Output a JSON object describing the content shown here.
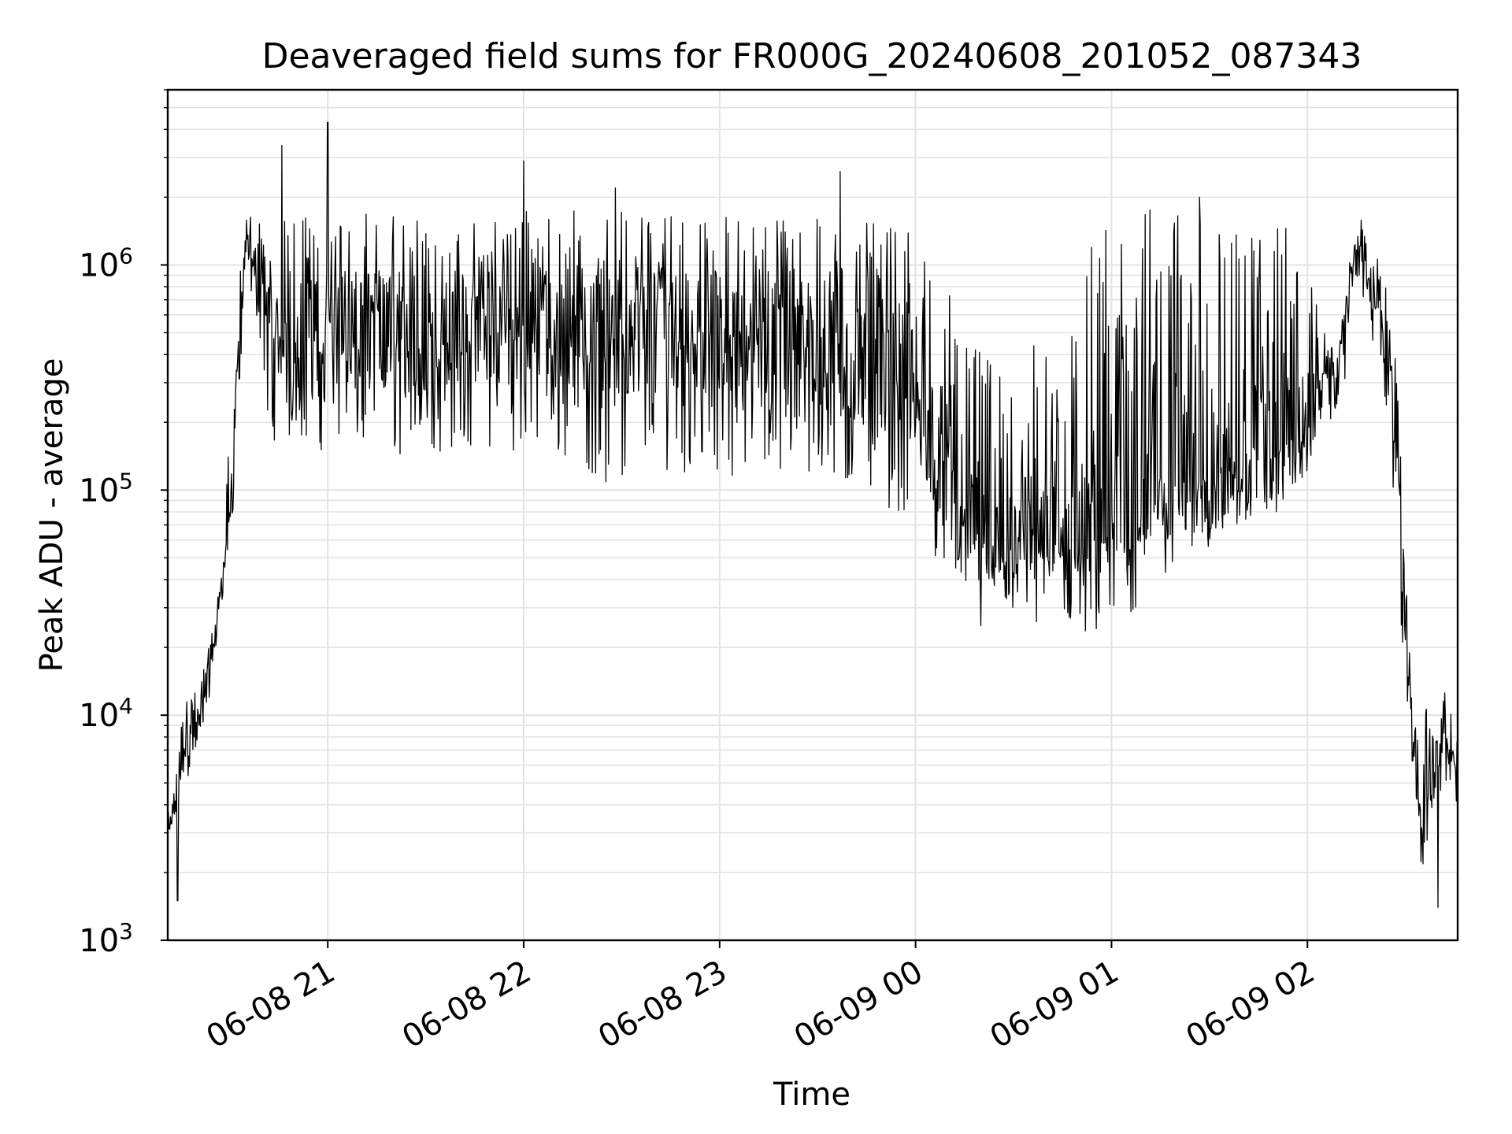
{
  "chart_data": {
    "type": "line",
    "title": "Deaveraged field sums for FR000G_20240608_201052_087343",
    "xlabel": "Time",
    "ylabel": "Peak ADU - average",
    "yscale": "log",
    "ylim": [
      1000,
      6000000
    ],
    "xlim": [
      "2024-06-08 20:11",
      "2024-06-09 02:46"
    ],
    "x_ticks": [
      {
        "t": "2024-06-08 21:00",
        "label": "06-08 21"
      },
      {
        "t": "2024-06-08 22:00",
        "label": "06-08 22"
      },
      {
        "t": "2024-06-08 23:00",
        "label": "06-08 23"
      },
      {
        "t": "2024-06-09 00:00",
        "label": "06-09 00"
      },
      {
        "t": "2024-06-09 01:00",
        "label": "06-09 01"
      },
      {
        "t": "2024-06-09 02:00",
        "label": "06-09 02"
      }
    ],
    "y_ticks": [
      {
        "value": 1000,
        "base": "10",
        "exp": "3"
      },
      {
        "value": 10000,
        "base": "10",
        "exp": "4"
      },
      {
        "value": 100000,
        "base": "10",
        "exp": "5"
      },
      {
        "value": 1000000,
        "base": "10",
        "exp": "6"
      }
    ],
    "grid": true,
    "line_color": "#000000",
    "series": [
      {
        "x": [
          "2024-06-08 20:11",
          "2024-06-08 20:14",
          "2024-06-08 20:17",
          "2024-06-08 20:20",
          "2024-06-08 20:22",
          "2024-06-08 20:25",
          "2024-06-08 20:28",
          "2024-06-08 20:31",
          "2024-06-08 20:33",
          "2024-06-08 20:35",
          "2024-06-08 20:38",
          "2024-06-08 20:40",
          "2024-06-08 20:42",
          "2024-06-08 20:45",
          "2024-06-08 20:47",
          "2024-06-08 20:50",
          "2024-06-08 20:55",
          "2024-06-08 21:00",
          "2024-06-08 21:10",
          "2024-06-08 21:20",
          "2024-06-08 21:30",
          "2024-06-08 21:40",
          "2024-06-08 21:50",
          "2024-06-08 22:00",
          "2024-06-08 22:10",
          "2024-06-08 22:20",
          "2024-06-08 22:30",
          "2024-06-08 22:40",
          "2024-06-08 22:50",
          "2024-06-08 23:00",
          "2024-06-08 23:10",
          "2024-06-08 23:20",
          "2024-06-08 23:30",
          "2024-06-08 23:40",
          "2024-06-08 23:50",
          "2024-06-09 00:00",
          "2024-06-09 00:10",
          "2024-06-09 00:20",
          "2024-06-09 00:30",
          "2024-06-09 00:40",
          "2024-06-09 00:50",
          "2024-06-09 01:00",
          "2024-06-09 01:10",
          "2024-06-09 01:20",
          "2024-06-09 01:30",
          "2024-06-09 01:40",
          "2024-06-09 01:50",
          "2024-06-09 02:00",
          "2024-06-09 02:05",
          "2024-06-09 02:10",
          "2024-06-09 02:15",
          "2024-06-09 02:20",
          "2024-06-09 02:25",
          "2024-06-09 02:28",
          "2024-06-09 02:31",
          "2024-06-09 02:35",
          "2024-06-09 02:40",
          "2024-06-09 02:43",
          "2024-06-09 02:46"
        ],
        "y": [
          2800,
          5000,
          8000,
          9000,
          12000,
          20000,
          45000,
          120000,
          400000,
          1300000,
          1000000,
          900000,
          450000,
          500000,
          400000,
          500000,
          450000,
          550000,
          500000,
          550000,
          450000,
          550000,
          500000,
          600000,
          550000,
          550000,
          500000,
          600000,
          550000,
          500000,
          450000,
          450000,
          400000,
          400000,
          350000,
          300000,
          120000,
          60000,
          50000,
          55000,
          55000,
          60000,
          80000,
          100000,
          120000,
          130000,
          150000,
          200000,
          300000,
          400000,
          1300000,
          800000,
          400000,
          100000,
          12000,
          3500,
          7000,
          8000,
          5000
        ],
        "low": [
          2600,
          3500,
          5000,
          6000,
          9000,
          15000,
          35000,
          80000,
          250000,
          900000,
          600000,
          400000,
          150000,
          180000,
          150000,
          180000,
          150000,
          150000,
          150000,
          140000,
          140000,
          150000,
          150000,
          150000,
          140000,
          120000,
          90000,
          120000,
          120000,
          120000,
          110000,
          110000,
          100000,
          100000,
          90000,
          60000,
          45000,
          30000,
          40000,
          40000,
          40000,
          40000,
          50000,
          60000,
          60000,
          65000,
          80000,
          120000,
          200000,
          200000,
          900000,
          450000,
          150000,
          30000,
          5000,
          2000,
          4000,
          5000,
          3000
        ],
        "high": [
          3500,
          8000,
          12000,
          13000,
          17000,
          25000,
          50000,
          400000,
          900000,
          1800000,
          1600000,
          1600000,
          1500000,
          1600000,
          1600000,
          1700000,
          1700000,
          1700000,
          1700000,
          1700000,
          1700000,
          1700000,
          1700000,
          1800000,
          1800000,
          1800000,
          1800000,
          1800000,
          1800000,
          1700000,
          1700000,
          1700000,
          1600000,
          1600000,
          1500000,
          1500000,
          800000,
          400000,
          400000,
          500000,
          1200000,
          1700000,
          1800000,
          1800000,
          1800000,
          1800000,
          1800000,
          1000000,
          500000,
          500000,
          1700000,
          1400000,
          800000,
          300000,
          20000,
          10000,
          15000,
          15000,
          8000
        ],
        "spikes": [
          {
            "t": "2024-06-08 20:14",
            "y": 1500
          },
          {
            "t": "2024-06-08 20:46",
            "y": 3400000
          },
          {
            "t": "2024-06-08 21:00",
            "y": 4300000
          },
          {
            "t": "2024-06-08 22:00",
            "y": 2900000
          },
          {
            "t": "2024-06-08 22:28",
            "y": 2200000
          },
          {
            "t": "2024-06-08 23:37",
            "y": 2600000
          },
          {
            "t": "2024-06-09 00:20",
            "y": 25000
          },
          {
            "t": "2024-06-09 00:37",
            "y": 26000
          },
          {
            "t": "2024-06-09 01:27",
            "y": 2000000
          },
          {
            "t": "2024-06-09 02:40",
            "y": 1400
          }
        ]
      }
    ]
  }
}
